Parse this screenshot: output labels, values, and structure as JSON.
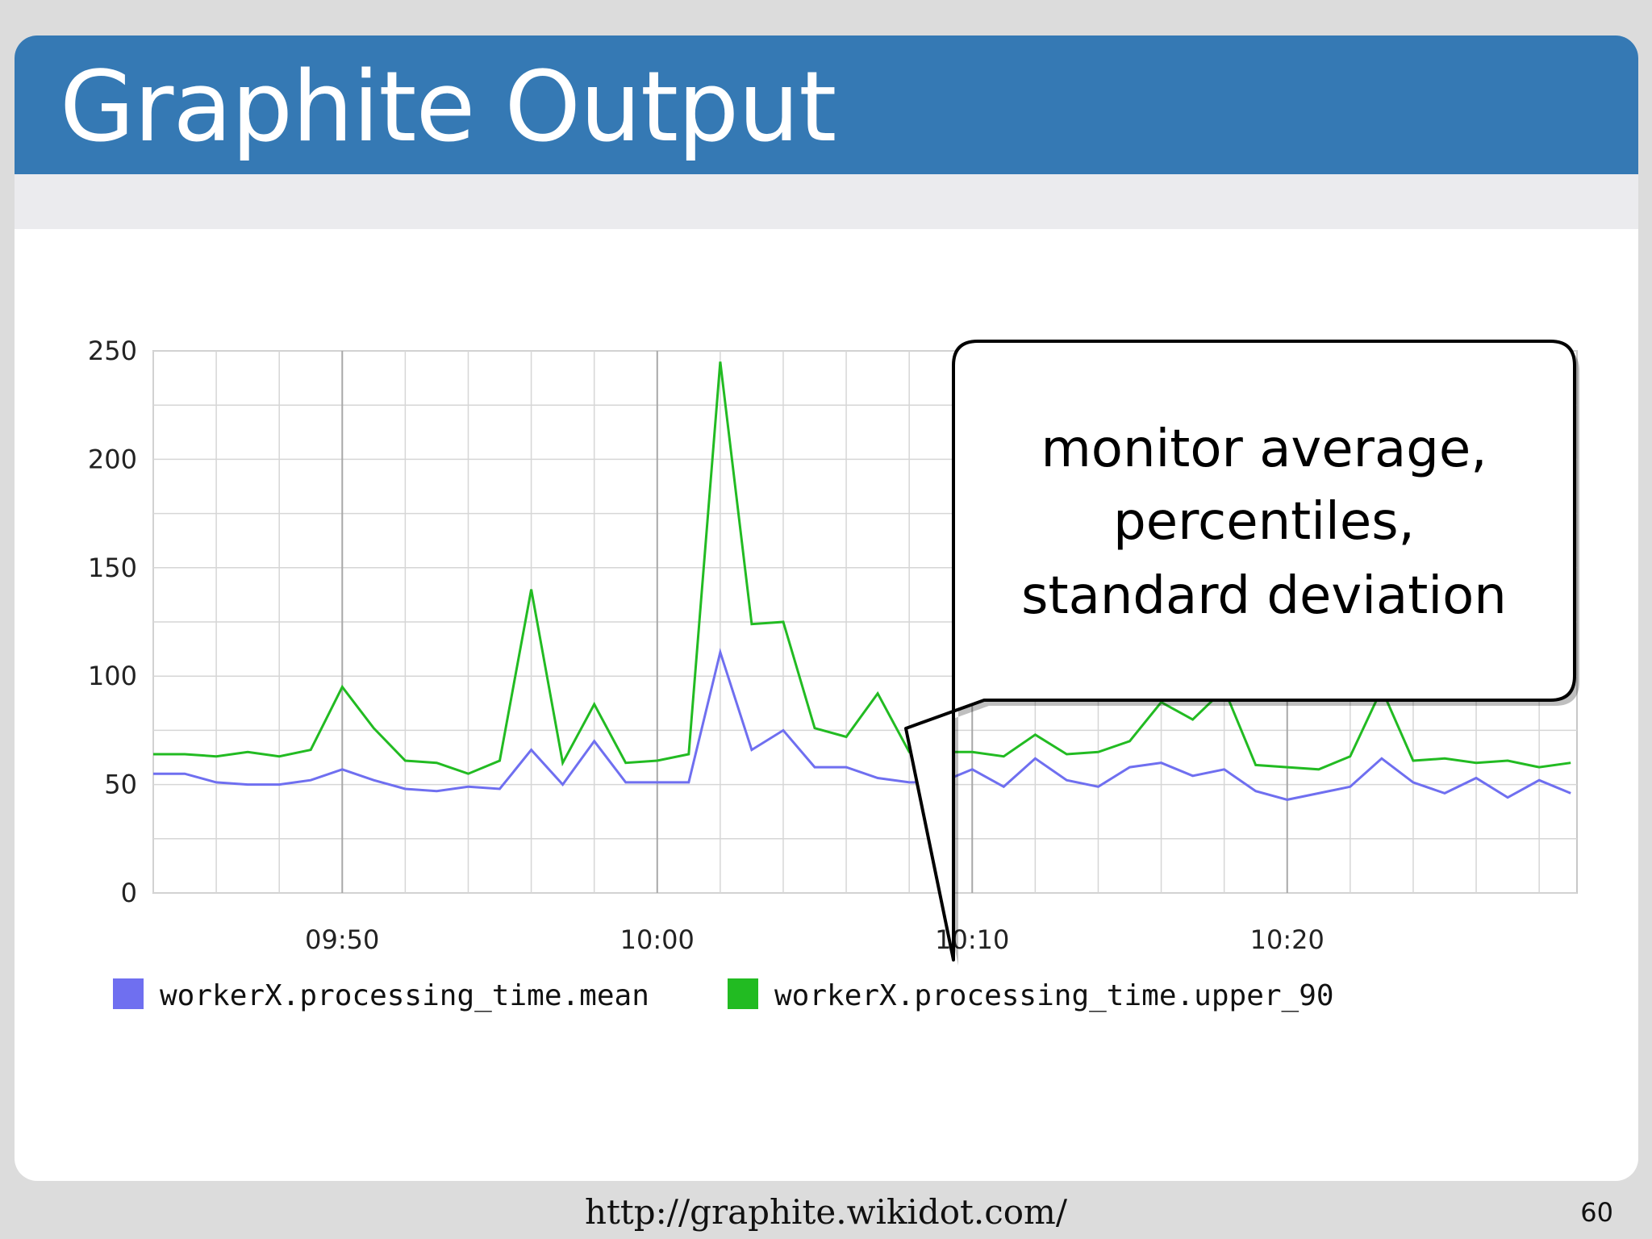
{
  "title": "Graphite Output",
  "footer": {
    "url": "http://graphite.wikidot.com/",
    "page_number": "60"
  },
  "callout": {
    "lines": [
      "monitor average,",
      "percentiles,",
      "standard deviation"
    ]
  },
  "colors": {
    "title_bar": "#3579b4",
    "mean": "#6f6ff0",
    "upper_90": "#22bb22",
    "grid": "#d4d4d4"
  },
  "chart_data": {
    "type": "line",
    "ylim": [
      0,
      250
    ],
    "yticks": [
      0,
      50,
      100,
      150,
      200,
      250
    ],
    "x_tick_labels": [
      "09:50",
      "10:00",
      "10:10",
      "10:20"
    ],
    "x_tick_minutes": [
      0,
      10,
      20,
      30
    ],
    "x_range_minutes": [
      -6,
      39.2
    ],
    "grid": true,
    "legend_placement": "bottom",
    "x_minutes": [
      -6,
      -5,
      -4,
      -3,
      -2,
      -1,
      0,
      1,
      2,
      3,
      4,
      5,
      6,
      7,
      8,
      9,
      10,
      11,
      12,
      13,
      14,
      15,
      16,
      17,
      18,
      19,
      20,
      21,
      22,
      23,
      24,
      25,
      26,
      27,
      28,
      29,
      30,
      31,
      32,
      33,
      34,
      35,
      36,
      37,
      38,
      39
    ],
    "series": [
      {
        "name": "workerX.processing_time.mean",
        "color": "#6f6ff0",
        "values": [
          55,
          55,
          51,
          50,
          50,
          52,
          57,
          52,
          48,
          47,
          49,
          48,
          66,
          50,
          70,
          51,
          51,
          51,
          111,
          66,
          75,
          58,
          58,
          53,
          51,
          51,
          57,
          49,
          62,
          52,
          49,
          58,
          60,
          54,
          57,
          47,
          43,
          46,
          49,
          62,
          51,
          46,
          53,
          44,
          52,
          46
        ]
      },
      {
        "name": "workerX.processing_time.upper_90",
        "color": "#22bb22",
        "values": [
          64,
          64,
          63,
          65,
          63,
          66,
          95,
          76,
          61,
          60,
          55,
          61,
          140,
          60,
          87,
          60,
          61,
          64,
          245,
          124,
          125,
          76,
          72,
          92,
          65,
          65,
          65,
          63,
          73,
          64,
          65,
          70,
          88,
          80,
          94,
          59,
          58,
          57,
          63,
          94,
          61,
          62,
          60,
          61,
          58,
          60
        ]
      }
    ]
  }
}
